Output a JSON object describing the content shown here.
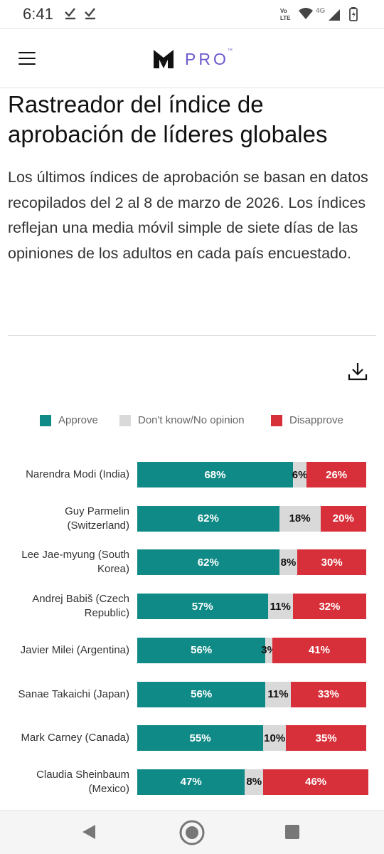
{
  "status_bar": {
    "time": "6:41",
    "network": "4G",
    "icons": [
      "download-done-icon",
      "download-done-icon",
      "volte-icon",
      "wifi-icon",
      "signal-icon",
      "battery-charging-icon"
    ]
  },
  "nav": {
    "menu_icon": "hamburger-menu-icon",
    "logo_text": "PRO",
    "logo_tm": "™"
  },
  "article": {
    "title": "Rastreador del índice de aprobación de líderes globales",
    "intro": "Los últimos índices de aprobación se basan en datos recopilados del 2 al 8 de marzo de 2026. Los índices reflejan una media móvil simple de siete días de las opiniones de los adultos en cada país encuestado."
  },
  "download_icon": "download-icon",
  "colors": {
    "approve": "#0f8a86",
    "dont_know": "#d9d9d9",
    "disapprove": "#d8303a",
    "logo_purple": "#6a5acd"
  },
  "chart_data": {
    "type": "bar",
    "orientation": "horizontal",
    "stacked": true,
    "legend": [
      "Approve",
      "Don't know/No opinion",
      "Disapprove"
    ],
    "legend_position": "top",
    "categories": [
      "Narendra Modi (India)",
      "Guy Parmelin (Switzerland)",
      "Lee Jae-myung (South Korea)",
      "Andrej Babiš (Czech Republic)",
      "Javier Milei (Argentina)",
      "Sanae Takaichi (Japan)",
      "Mark Carney (Canada)",
      "Claudia Sheinbaum (Mexico)"
    ],
    "series": [
      {
        "name": "Approve",
        "values": [
          68,
          62,
          62,
          57,
          56,
          56,
          55,
          47
        ]
      },
      {
        "name": "Don't know/No opinion",
        "values": [
          6,
          18,
          8,
          11,
          3,
          11,
          10,
          8
        ]
      },
      {
        "name": "Disapprove",
        "values": [
          26,
          20,
          30,
          32,
          41,
          33,
          35,
          46
        ]
      }
    ],
    "value_suffix": "%",
    "xlim": [
      0,
      100
    ]
  },
  "label_lines": [
    [
      "Narendra Modi (India)"
    ],
    [
      "Guy Parmelin",
      "(Switzerland)"
    ],
    [
      "Lee Jae-myung (South",
      "Korea)"
    ],
    [
      "Andrej Babiš (Czech",
      "Republic)"
    ],
    [
      "Javier Milei (Argentina)"
    ],
    [
      "Sanae Takaichi (Japan)"
    ],
    [
      "Mark Carney (Canada)"
    ],
    [
      "Claudia Sheinbaum",
      "(Mexico)"
    ]
  ],
  "bottom_nav": {
    "back_icon": "back-triangle-icon",
    "home_icon": "home-circle-icon",
    "recent_icon": "recent-apps-square-icon"
  }
}
